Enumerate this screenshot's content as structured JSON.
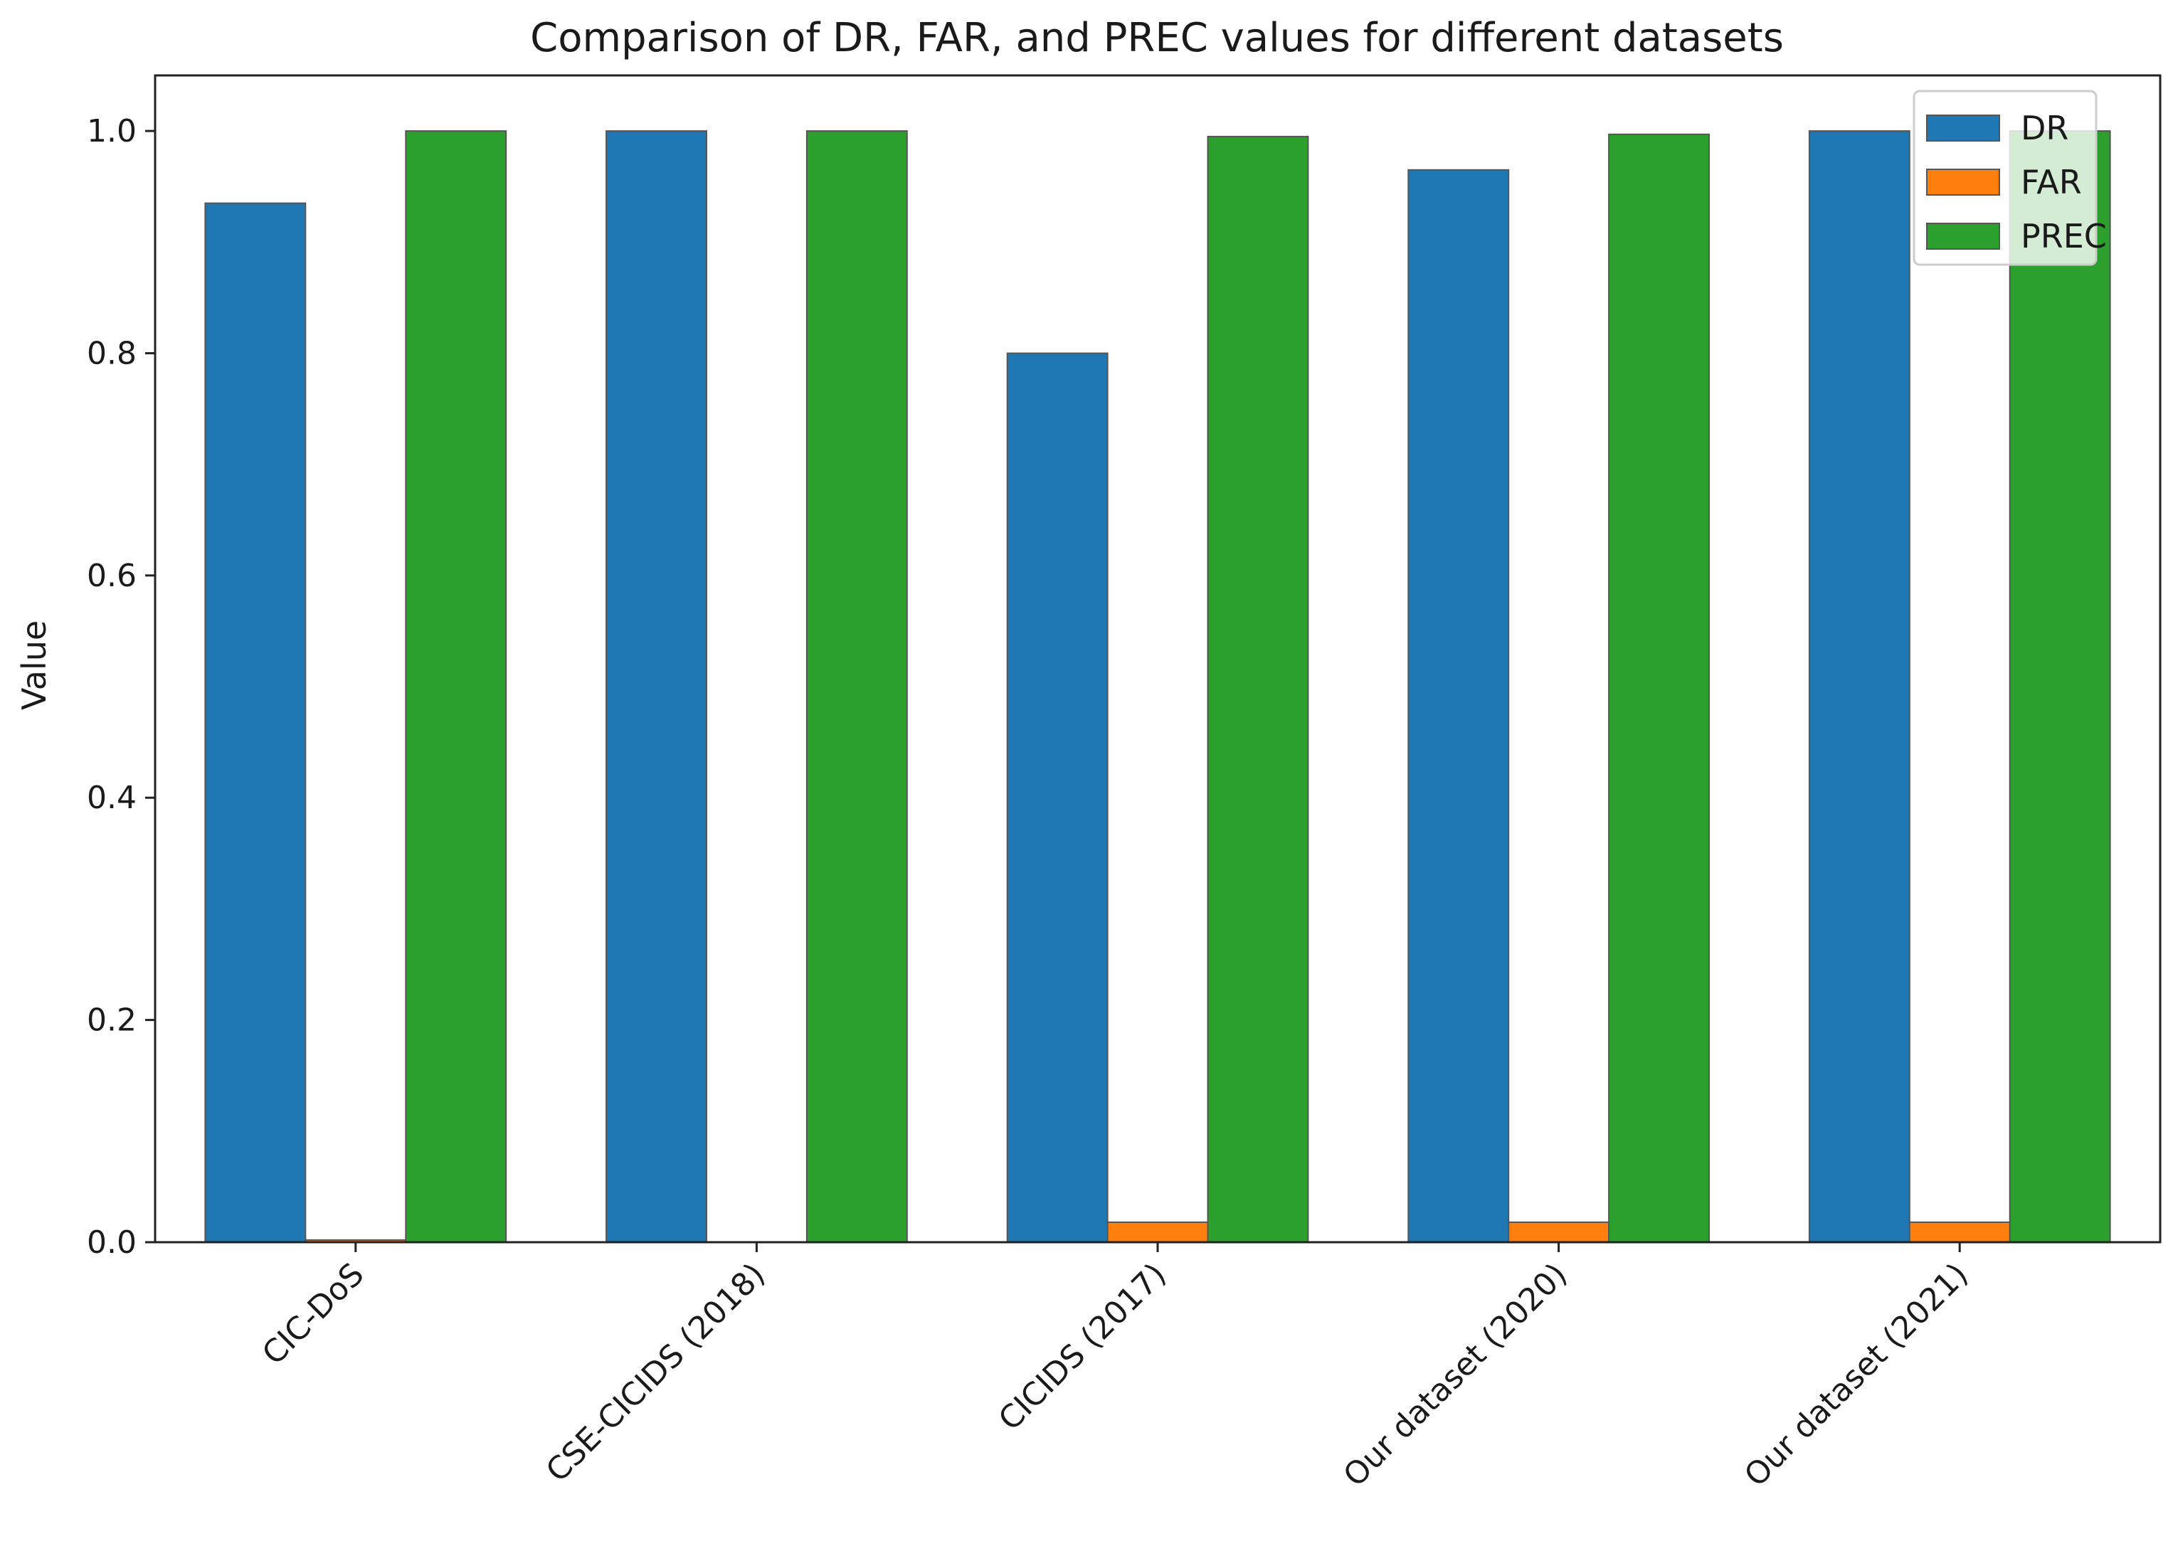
{
  "chart_data": {
    "type": "bar",
    "title": "Comparison of DR, FAR, and PREC values for different datasets",
    "xlabel": "",
    "ylabel": "Value",
    "ylim": [
      0,
      1.05
    ],
    "yticks": [
      0.0,
      0.2,
      0.4,
      0.6,
      0.8,
      1.0
    ],
    "ytick_labels": [
      "0.0",
      "0.2",
      "0.4",
      "0.6",
      "0.8",
      "1.0"
    ],
    "categories": [
      "CIC-DoS",
      "CSE-CICIDS (2018)",
      "CICIDS (2017)",
      "Our dataset (2020)",
      "Our dataset (2021)"
    ],
    "series": [
      {
        "name": "DR",
        "color": "#1f77b4",
        "values": [
          0.935,
          1.0,
          0.8,
          0.965,
          1.0
        ]
      },
      {
        "name": "FAR",
        "color": "#ff7f0e",
        "values": [
          0.002,
          0.0,
          0.018,
          0.018,
          0.018
        ]
      },
      {
        "name": "PREC",
        "color": "#2ca02c",
        "values": [
          1.0,
          1.0,
          0.995,
          0.997,
          1.0
        ]
      }
    ],
    "legend_position": "top-right",
    "grid": false
  }
}
